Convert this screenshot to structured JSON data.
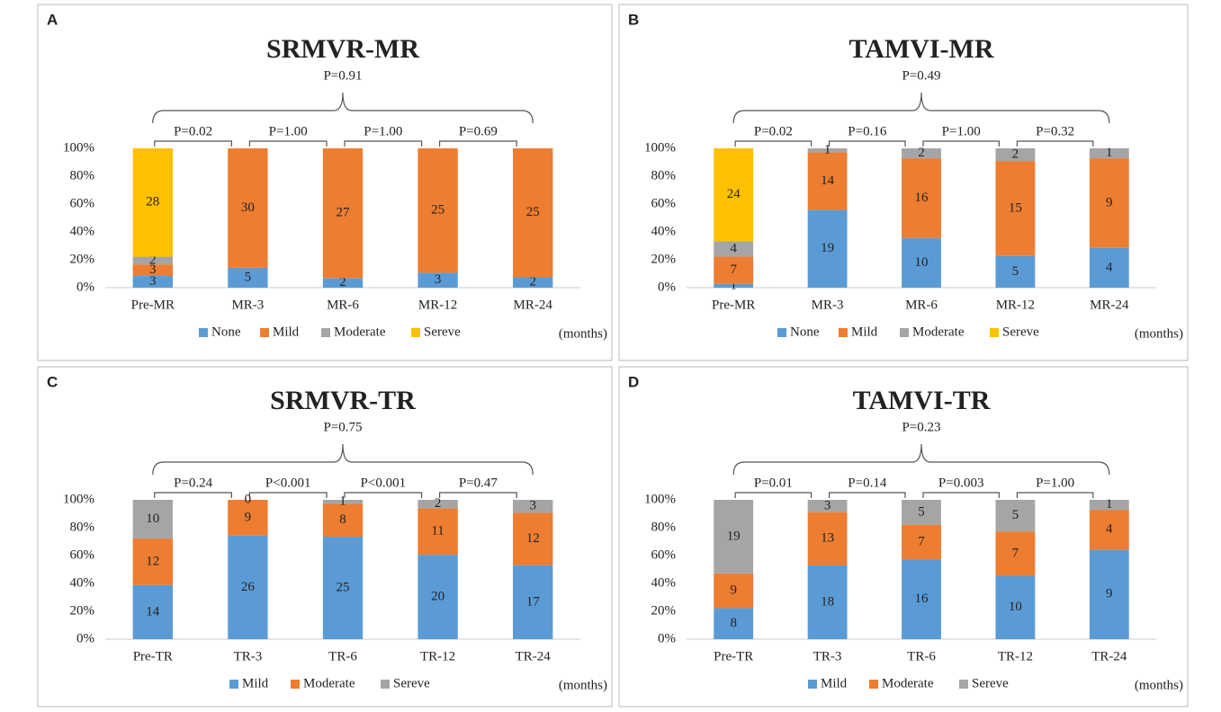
{
  "chart_data": [
    {
      "type": "bar",
      "stacked": "percent",
      "panel": "A",
      "title": "SRMVR-MR",
      "overall_p": "P=0.91",
      "pair_p": [
        "P=0.02",
        "P=1.00",
        "P=1.00",
        "P=0.69"
      ],
      "x_unit": "(months)",
      "categories": [
        "Pre-MR",
        "MR-3",
        "MR-6",
        "MR-12",
        "MR-24"
      ],
      "series": [
        {
          "name": "None",
          "color": "#5b9bd5",
          "values": [
            3,
            5,
            2,
            3,
            2
          ]
        },
        {
          "name": "Mild",
          "color": "#ed7d31",
          "values": [
            3,
            30,
            27,
            25,
            25
          ]
        },
        {
          "name": "Moderate",
          "color": "#a5a5a5",
          "values": [
            2,
            null,
            null,
            null,
            null
          ]
        },
        {
          "name": "Sereve",
          "color": "#ffc000",
          "values": [
            28,
            null,
            null,
            null,
            null
          ]
        }
      ],
      "ylim": [
        0,
        100
      ],
      "yticks": [
        {
          "value": 0,
          "label": "0%"
        },
        {
          "value": 20,
          "label": "20%"
        },
        {
          "value": 40,
          "label": "40%"
        },
        {
          "value": 60,
          "label": "60%"
        },
        {
          "value": 80,
          "label": "80%"
        },
        {
          "value": 100,
          "label": "100%"
        }
      ],
      "legend": "bottom"
    },
    {
      "type": "bar",
      "stacked": "percent",
      "panel": "B",
      "title": "TAMVI-MR",
      "overall_p": "P=0.49",
      "pair_p": [
        "P=0.02",
        "P=0.16",
        "P=1.00",
        "P=0.32"
      ],
      "x_unit": "(months)",
      "categories": [
        "Pre-MR",
        "MR-3",
        "MR-6",
        "MR-12",
        "MR-24"
      ],
      "series": [
        {
          "name": "None",
          "color": "#5b9bd5",
          "values": [
            1,
            19,
            10,
            5,
            4
          ]
        },
        {
          "name": "Mild",
          "color": "#ed7d31",
          "values": [
            7,
            14,
            16,
            15,
            9
          ]
        },
        {
          "name": "Moderate",
          "color": "#a5a5a5",
          "values": [
            4,
            1,
            2,
            2,
            1
          ]
        },
        {
          "name": "Sereve",
          "color": "#ffc000",
          "values": [
            24,
            null,
            null,
            null,
            null
          ]
        }
      ],
      "ylim": [
        0,
        100
      ],
      "yticks": [
        {
          "value": 0,
          "label": "0%"
        },
        {
          "value": 20,
          "label": "20%"
        },
        {
          "value": 40,
          "label": "40%"
        },
        {
          "value": 60,
          "label": "60%"
        },
        {
          "value": 80,
          "label": "80%"
        },
        {
          "value": 100,
          "label": "100%"
        }
      ],
      "legend": "bottom"
    },
    {
      "type": "bar",
      "stacked": "percent",
      "panel": "C",
      "title": "SRMVR-TR",
      "overall_p": "P=0.75",
      "pair_p": [
        "P=0.24",
        "P<0.001",
        "P<0.001",
        "P=0.47"
      ],
      "x_unit": "(months)",
      "categories": [
        "Pre-TR",
        "TR-3",
        "TR-6",
        "TR-12",
        "TR-24"
      ],
      "series": [
        {
          "name": "Mild",
          "color": "#5b9bd5",
          "values": [
            14,
            26,
            25,
            20,
            17
          ]
        },
        {
          "name": "Moderate",
          "color": "#ed7d31",
          "values": [
            12,
            9,
            8,
            11,
            12
          ]
        },
        {
          "name": "Sereve",
          "color": "#a5a5a5",
          "values": [
            10,
            0,
            1,
            2,
            3
          ]
        }
      ],
      "ylim": [
        0,
        100
      ],
      "yticks": [
        {
          "value": 0,
          "label": "0%"
        },
        {
          "value": 20,
          "label": "20%"
        },
        {
          "value": 40,
          "label": "40%"
        },
        {
          "value": 60,
          "label": "60%"
        },
        {
          "value": 80,
          "label": "80%"
        },
        {
          "value": 100,
          "label": "100%"
        }
      ],
      "legend": "bottom"
    },
    {
      "type": "bar",
      "stacked": "percent",
      "panel": "D",
      "title": "TAMVI-TR",
      "overall_p": "P=0.23",
      "pair_p": [
        "P=0.01",
        "P=0.14",
        "P=0.003",
        "P=1.00"
      ],
      "x_unit": "(months)",
      "categories": [
        "Pre-TR",
        "TR-3",
        "TR-6",
        "TR-12",
        "TR-24"
      ],
      "series": [
        {
          "name": "Mild",
          "color": "#5b9bd5",
          "values": [
            8,
            18,
            16,
            10,
            9
          ]
        },
        {
          "name": "Moderate",
          "color": "#ed7d31",
          "values": [
            9,
            13,
            7,
            7,
            4
          ]
        },
        {
          "name": "Sereve",
          "color": "#a5a5a5",
          "values": [
            19,
            3,
            5,
            5,
            1
          ]
        }
      ],
      "ylim": [
        0,
        100
      ],
      "yticks": [
        {
          "value": 0,
          "label": "0%"
        },
        {
          "value": 20,
          "label": "20%"
        },
        {
          "value": 40,
          "label": "40%"
        },
        {
          "value": 60,
          "label": "60%"
        },
        {
          "value": 80,
          "label": "80%"
        },
        {
          "value": 100,
          "label": "100%"
        }
      ],
      "legend": "bottom"
    }
  ]
}
